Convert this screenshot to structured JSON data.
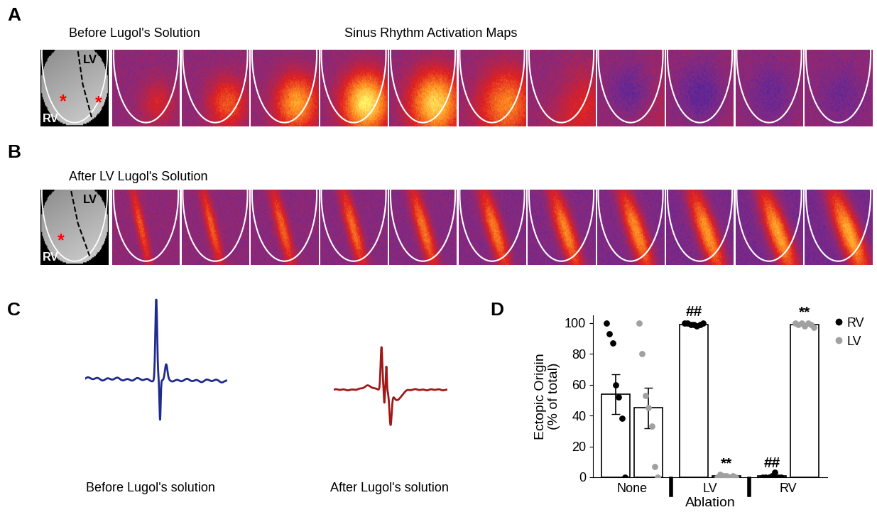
{
  "panel_labels": [
    "A",
    "B",
    "C",
    "D"
  ],
  "panel_a": {
    "title": "Before Lugol's Solution",
    "subtitle": "Sinus Rhythm Activation Maps",
    "image_labels": [
      "LV",
      "RV"
    ],
    "markers": [
      "*",
      "*"
    ]
  },
  "panel_b": {
    "title": "After LV Lugol's Solution",
    "image_labels": [
      "LV",
      "RV"
    ],
    "markers": [
      "*"
    ]
  },
  "panel_c": {
    "traces": [
      {
        "label": "Before Lugol's solution",
        "color": "#1f2a8c"
      },
      {
        "label": "After Lugol's solution",
        "color": "#a01818"
      }
    ]
  },
  "chart_data": {
    "type": "bar",
    "categories": [
      "None",
      "LV",
      "RV"
    ],
    "x_label": "Ablation",
    "y_label": "Ectopic Origin\n(% of total)",
    "ylim": [
      0,
      105
    ],
    "yticks": [
      0,
      20,
      40,
      60,
      80,
      100
    ],
    "legend": "upper left",
    "series": [
      {
        "name": "RV",
        "color": "#000000",
        "values": [
          54,
          99,
          1
        ],
        "errors": [
          13,
          0.5,
          0.5
        ],
        "points": [
          [
            100,
            93,
            87,
            60,
            52,
            38,
            0
          ],
          [
            100,
            100,
            99,
            99,
            98,
            99,
            100
          ],
          [
            0,
            0,
            0,
            1,
            3,
            0,
            0
          ]
        ]
      },
      {
        "name": "LV",
        "color": "#a0a0a0",
        "values": [
          45,
          1,
          99
        ],
        "errors": [
          13,
          0.5,
          0.5
        ],
        "points": [
          [
            100,
            80,
            53,
            45,
            33,
            7,
            0
          ],
          [
            0,
            2,
            1,
            1,
            0,
            1,
            0
          ],
          [
            100,
            99,
            100,
            98,
            100,
            99,
            97
          ]
        ]
      }
    ],
    "annotations": [
      {
        "text": "##",
        "category": "LV",
        "series": "RV"
      },
      {
        "text": "**",
        "category": "LV",
        "series": "LV"
      },
      {
        "text": "##",
        "category": "RV",
        "series": "RV"
      },
      {
        "text": "**",
        "category": "RV",
        "series": "LV"
      }
    ]
  }
}
